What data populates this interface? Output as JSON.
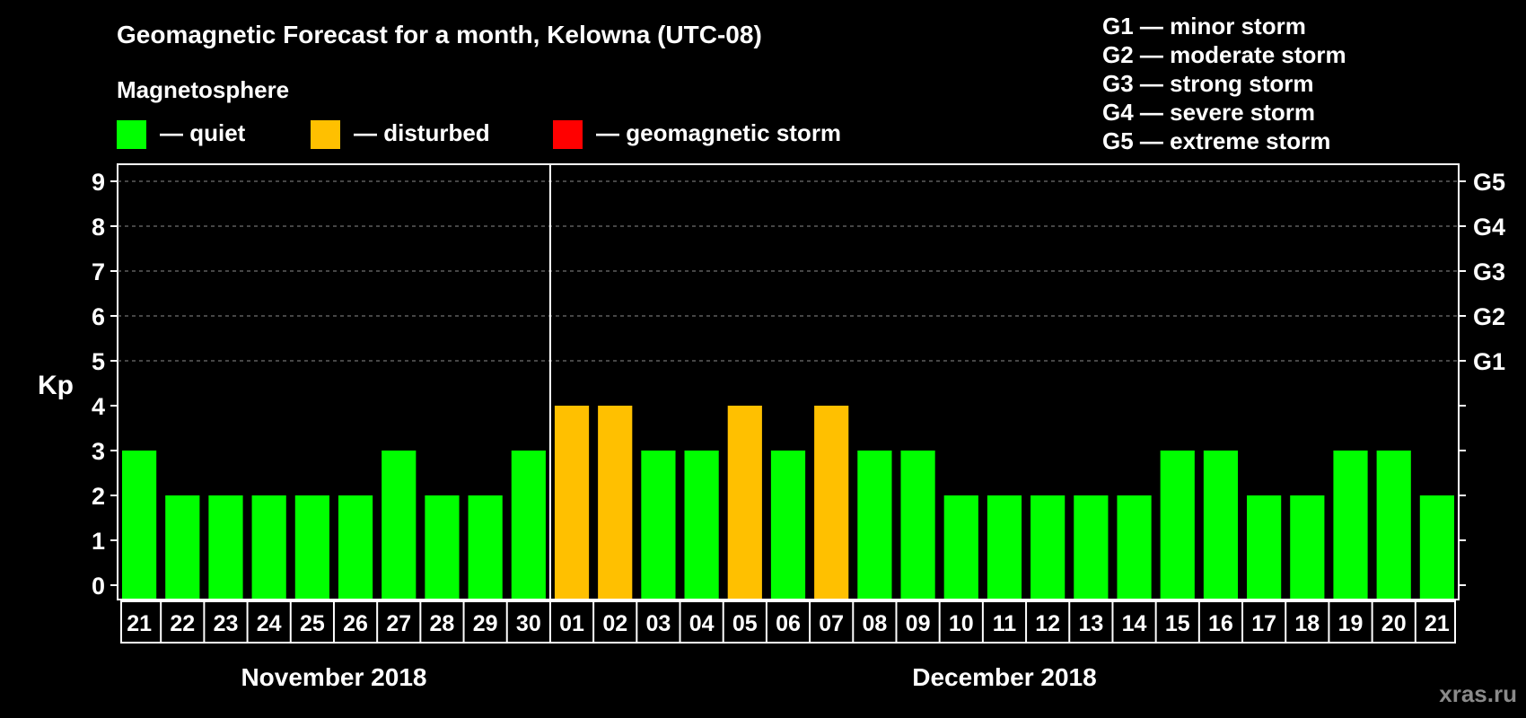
{
  "chart_data": {
    "type": "bar",
    "title": "Geomagnetic Forecast for a month, Kelowna (UTC-08)",
    "ylabel": "Kp",
    "ylim": [
      0,
      9
    ],
    "yticks": [
      "0",
      "1",
      "2",
      "3",
      "4",
      "5",
      "6",
      "7",
      "8",
      "9"
    ],
    "right_axis_labels": [
      {
        "kp": 5,
        "label": "G1"
      },
      {
        "kp": 6,
        "label": "G2"
      },
      {
        "kp": 7,
        "label": "G3"
      },
      {
        "kp": 8,
        "label": "G4"
      },
      {
        "kp": 9,
        "label": "G5"
      }
    ],
    "grid": "dashed horizontal at Kp 5-9",
    "categories": [
      "21",
      "22",
      "23",
      "24",
      "25",
      "26",
      "27",
      "28",
      "29",
      "30",
      "01",
      "02",
      "03",
      "04",
      "05",
      "06",
      "07",
      "08",
      "09",
      "10",
      "11",
      "12",
      "13",
      "14",
      "15",
      "16",
      "17",
      "18",
      "19",
      "20",
      "21"
    ],
    "values": [
      3,
      2,
      2,
      2,
      2,
      2,
      3,
      2,
      2,
      3,
      4,
      4,
      3,
      3,
      4,
      3,
      4,
      3,
      3,
      2,
      2,
      2,
      2,
      2,
      3,
      3,
      2,
      2,
      3,
      3,
      2
    ],
    "months": [
      {
        "label": "November 2018",
        "start_index": 0,
        "end_index": 9
      },
      {
        "label": "December 2018",
        "start_index": 10,
        "end_index": 30
      }
    ],
    "magnetosphere_title": "Magnetosphere",
    "legend": [
      {
        "label": "— quiet",
        "color": "#00ff00"
      },
      {
        "label": "— disturbed",
        "color": "#ffc000"
      },
      {
        "label": "— geomagnetic storm",
        "color": "#ff0000"
      }
    ],
    "storm_scale": [
      "G1 — minor storm",
      "G2 — moderate storm",
      "G3 — strong storm",
      "G4 — severe storm",
      "G5 — extreme storm"
    ],
    "watermark": "xras.ru"
  }
}
